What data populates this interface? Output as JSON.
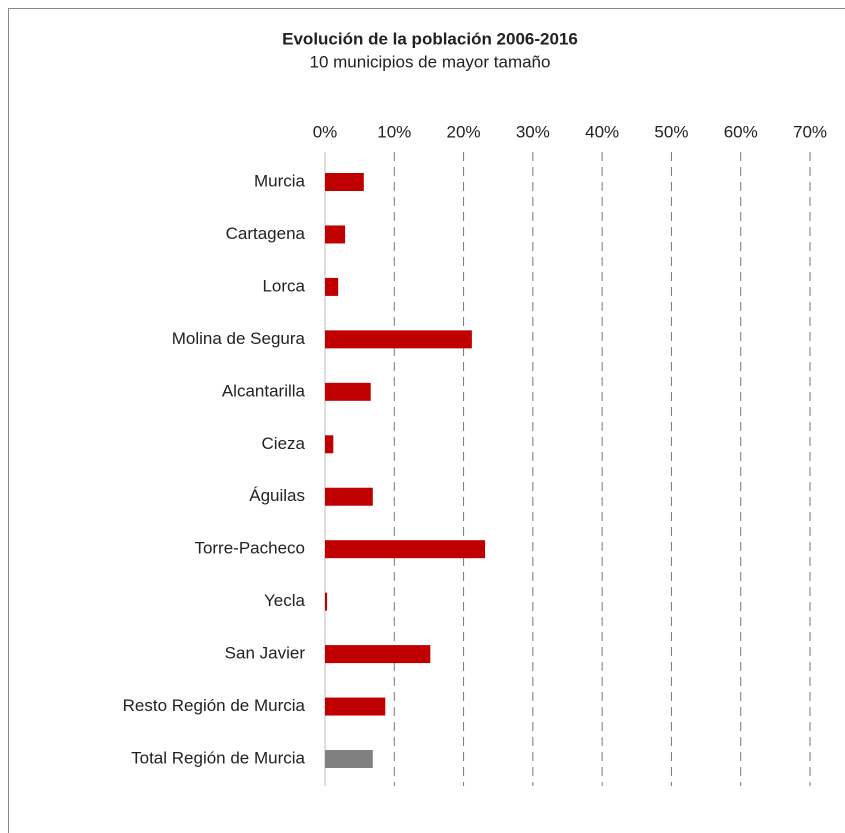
{
  "chart_data": {
    "type": "bar",
    "orientation": "horizontal",
    "title": "Evolución de la población 2006-2016",
    "subtitle": "10 municipios de mayor tamaño",
    "categories": [
      "Murcia",
      "Cartagena",
      "Lorca",
      "Molina de Segura",
      "Alcantarilla",
      "Cieza",
      "Águilas",
      "Torre-Pacheco",
      "Yecla",
      "San Javier",
      "Resto Región de Murcia",
      "Total Región de Murcia"
    ],
    "values": [
      5.6,
      2.9,
      1.9,
      21.2,
      6.6,
      1.2,
      6.9,
      23.1,
      0.3,
      15.2,
      8.7,
      6.9
    ],
    "colors": [
      "#c00000",
      "#c00000",
      "#c00000",
      "#c00000",
      "#c00000",
      "#c00000",
      "#c00000",
      "#c00000",
      "#c00000",
      "#c00000",
      "#c00000",
      "#808080"
    ],
    "xlim": [
      0,
      70
    ],
    "xticks": [
      {
        "value": 0,
        "label": "0%"
      },
      {
        "value": 10,
        "label": "10%"
      },
      {
        "value": 20,
        "label": "20%"
      },
      {
        "value": 30,
        "label": "30%"
      },
      {
        "value": 40,
        "label": "40%"
      },
      {
        "value": 50,
        "label": "50%"
      },
      {
        "value": 60,
        "label": "60%"
      },
      {
        "value": 70,
        "label": "70%"
      }
    ],
    "grid": true
  }
}
